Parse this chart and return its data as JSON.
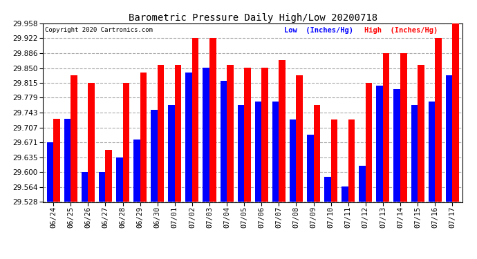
{
  "title": "Barometric Pressure Daily High/Low 20200718",
  "copyright": "Copyright 2020 Cartronics.com",
  "legend_low": "Low  (Inches/Hg)",
  "legend_high": "High  (Inches/Hg)",
  "dates": [
    "06/24",
    "06/25",
    "06/26",
    "06/27",
    "06/28",
    "06/29",
    "06/30",
    "07/01",
    "07/02",
    "07/03",
    "07/04",
    "07/05",
    "07/06",
    "07/07",
    "07/08",
    "07/09",
    "07/10",
    "07/11",
    "07/12",
    "07/13",
    "07/14",
    "07/15",
    "07/16",
    "07/17"
  ],
  "high": [
    29.729,
    29.833,
    29.815,
    29.654,
    29.815,
    29.84,
    29.858,
    29.858,
    29.922,
    29.922,
    29.858,
    29.851,
    29.851,
    29.869,
    29.833,
    29.761,
    29.726,
    29.726,
    29.815,
    29.886,
    29.886,
    29.858,
    29.922,
    29.958
  ],
  "low": [
    29.671,
    29.729,
    29.6,
    29.6,
    29.636,
    29.679,
    29.75,
    29.762,
    29.84,
    29.851,
    29.82,
    29.762,
    29.77,
    29.77,
    29.726,
    29.69,
    29.588,
    29.565,
    29.615,
    29.808,
    29.799,
    29.761,
    29.769,
    29.833
  ],
  "ylim_min": 29.528,
  "ylim_max": 29.958,
  "yticks": [
    29.528,
    29.564,
    29.6,
    29.635,
    29.671,
    29.707,
    29.743,
    29.779,
    29.815,
    29.85,
    29.886,
    29.922,
    29.958
  ],
  "bar_width": 0.38,
  "high_color": "#ff0000",
  "low_color": "#0000ff",
  "bg_color": "#ffffff",
  "grid_color": "#aaaaaa",
  "title_color": "#000000",
  "copyright_color": "#000000",
  "legend_low_color": "#0000ff",
  "legend_high_color": "#ff0000"
}
